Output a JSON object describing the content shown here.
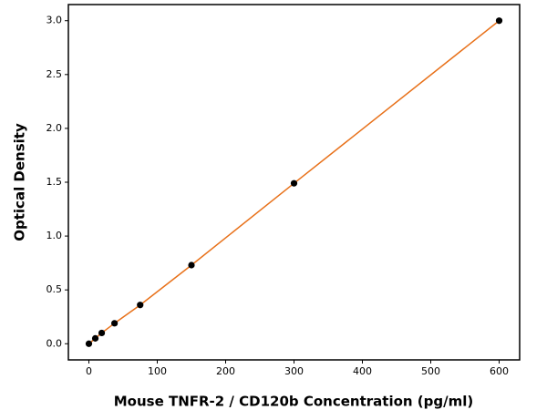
{
  "chart_data": {
    "type": "scatter",
    "x_label": "Mouse TNFR-2 / CD120b Concentration (pg/ml)",
    "y_label": "Optical Density",
    "x": [
      0,
      9.375,
      18.75,
      37.5,
      75,
      150,
      300,
      600
    ],
    "series": [
      {
        "values": [
          0.0,
          0.05,
          0.1,
          0.19,
          0.36,
          0.73,
          1.49,
          3.0
        ],
        "color": "#000000",
        "line_color": "#e8711a"
      }
    ],
    "xlim": [
      -30,
      630
    ],
    "ylim": [
      -0.15,
      3.15
    ],
    "xticks": [
      0,
      100,
      200,
      300,
      400,
      500,
      600
    ],
    "yticks": [
      {
        "value": 0,
        "label": "0.0"
      },
      0.5,
      {
        "value": 1,
        "label": "1.0"
      },
      1.5,
      {
        "value": 2,
        "label": "2.0"
      },
      2.5,
      {
        "value": 3,
        "label": "3.0"
      }
    ]
  }
}
